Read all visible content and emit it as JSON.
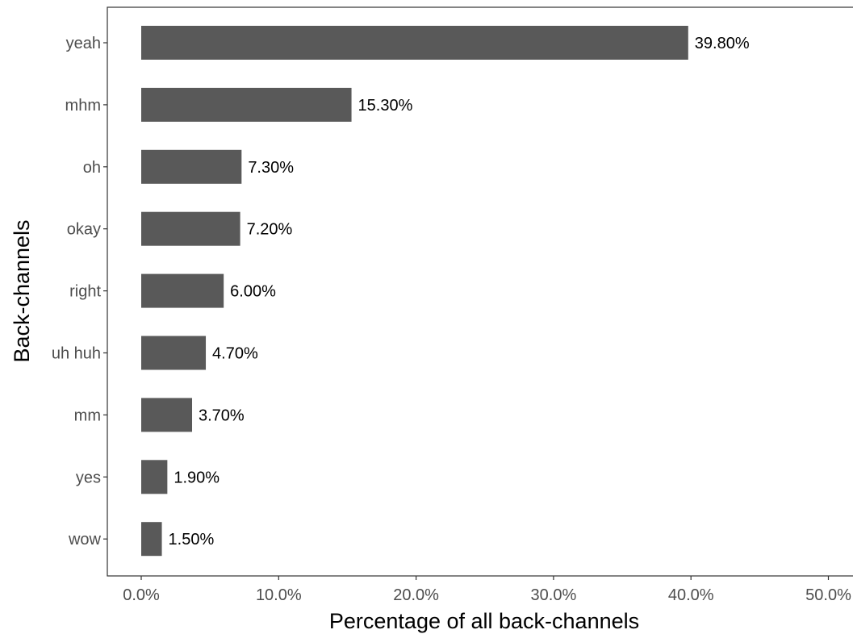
{
  "chart_data": {
    "type": "bar",
    "orientation": "horizontal",
    "categories": [
      "yeah",
      "mhm",
      "oh",
      "okay",
      "right",
      "uh huh",
      "mm",
      "yes",
      "wow"
    ],
    "values": [
      39.8,
      15.3,
      7.3,
      7.2,
      6.0,
      4.7,
      3.7,
      1.9,
      1.5
    ],
    "value_labels": [
      "39.80%",
      "15.30%",
      "7.30%",
      "7.20%",
      "6.00%",
      "4.70%",
      "3.70%",
      "1.90%",
      "1.50%"
    ],
    "title": "",
    "xlabel": "Percentage of all back-channels",
    "ylabel": "Back-channels",
    "xlim": [
      0,
      50
    ],
    "x_ticks": [
      0,
      10,
      20,
      30,
      40,
      50
    ],
    "x_tick_labels": [
      "0.0%",
      "10.0%",
      "20.0%",
      "30.0%",
      "40.0%",
      "50.0%"
    ],
    "grid": false,
    "legend": "none",
    "bar_color": "#595959",
    "axis_color": "#333333"
  }
}
